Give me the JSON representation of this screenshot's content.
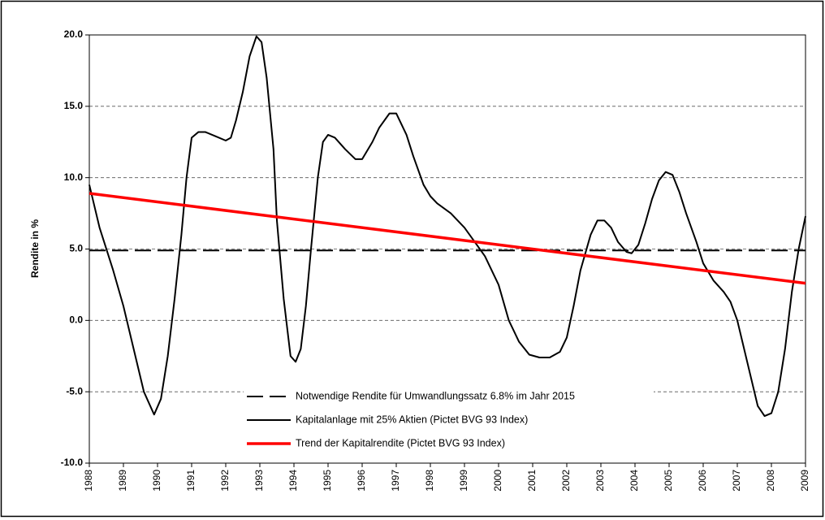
{
  "chart_data": {
    "type": "line",
    "ylabel": "Rendite in %",
    "xlim": [
      1988,
      2009
    ],
    "xticks": [
      1988,
      1989,
      1990,
      1991,
      1992,
      1993,
      1994,
      1995,
      1996,
      1997,
      1998,
      1999,
      2000,
      2001,
      2002,
      2003,
      2004,
      2005,
      2006,
      2007,
      2008,
      2009
    ],
    "ylim": [
      -10,
      20
    ],
    "yticks": [
      {
        "value": -10,
        "label": "-10.0"
      },
      {
        "value": -5,
        "label": "-5.0"
      },
      {
        "value": 0,
        "label": "0.0"
      },
      {
        "value": 5,
        "label": "5.0"
      },
      {
        "value": 10,
        "label": "10.0"
      },
      {
        "value": 15,
        "label": "15.0"
      },
      {
        "value": 20,
        "label": "20.0"
      }
    ],
    "grid": true,
    "legend": "lower center",
    "series": [
      {
        "name": "Notwendige Rendite für Umwandlungssatz 6.8% im Jahr 2015",
        "color": "#000000",
        "dash": true,
        "x": [
          1988,
          2009
        ],
        "values": [
          4.9,
          4.9
        ]
      },
      {
        "name": "Kapitalanlage mit 25% Aktien (Pictet BVG 93 Index)",
        "color": "#000000",
        "dash": false,
        "x": [
          1988.0,
          1988.3,
          1988.7,
          1989.0,
          1989.3,
          1989.6,
          1989.9,
          1990.1,
          1990.3,
          1990.5,
          1990.7,
          1990.85,
          1991.0,
          1991.2,
          1991.4,
          1991.7,
          1992.0,
          1992.15,
          1992.3,
          1992.5,
          1992.7,
          1992.9,
          1993.05,
          1993.2,
          1993.4,
          1993.5,
          1993.7,
          1993.9,
          1994.05,
          1994.2,
          1994.35,
          1994.5,
          1994.7,
          1994.85,
          1995.0,
          1995.2,
          1995.5,
          1995.8,
          1996.0,
          1996.3,
          1996.5,
          1996.8,
          1997.0,
          1997.3,
          1997.5,
          1997.8,
          1998.0,
          1998.2,
          1998.6,
          1999.0,
          1999.3,
          1999.6,
          2000.0,
          2000.3,
          2000.6,
          2000.9,
          2001.2,
          2001.5,
          2001.8,
          2002.0,
          2002.2,
          2002.4,
          2002.7,
          2002.9,
          2003.1,
          2003.3,
          2003.5,
          2003.75,
          2003.9,
          2004.1,
          2004.3,
          2004.5,
          2004.7,
          2004.9,
          2005.1,
          2005.3,
          2005.5,
          2005.8,
          2006.0,
          2006.3,
          2006.6,
          2006.8,
          2007.0,
          2007.2,
          2007.4,
          2007.6,
          2007.8,
          2008.0,
          2008.2,
          2008.4,
          2008.6,
          2008.8,
          2009.0
        ],
        "values": [
          9.5,
          6.5,
          3.5,
          1.0,
          -2.0,
          -5.0,
          -6.6,
          -5.5,
          -2.5,
          1.5,
          6.0,
          10.0,
          12.8,
          13.2,
          13.2,
          12.9,
          12.6,
          12.8,
          14.0,
          16.0,
          18.5,
          19.9,
          19.5,
          17.0,
          12.0,
          7.0,
          1.5,
          -2.5,
          -2.9,
          -2.0,
          1.0,
          5.0,
          10.0,
          12.5,
          13.0,
          12.8,
          12.0,
          11.3,
          11.3,
          12.5,
          13.5,
          14.5,
          14.5,
          13.0,
          11.5,
          9.5,
          8.7,
          8.2,
          7.5,
          6.5,
          5.5,
          4.5,
          2.5,
          0.0,
          -1.5,
          -2.4,
          -2.6,
          -2.6,
          -2.2,
          -1.2,
          1.0,
          3.5,
          6.0,
          7.0,
          7.0,
          6.5,
          5.5,
          4.8,
          4.7,
          5.3,
          6.8,
          8.5,
          9.8,
          10.4,
          10.2,
          9.0,
          7.5,
          5.5,
          4.0,
          2.8,
          2.0,
          1.3,
          0.0,
          -2.0,
          -4.0,
          -6.0,
          -6.7,
          -6.5,
          -5.0,
          -2.0,
          2.0,
          5.0,
          7.3
        ]
      },
      {
        "name": "Trend der Kapitalrendite (Pictet BVG 93 Index)",
        "color": "#ff0000",
        "dash": false,
        "x": [
          1988,
          2009
        ],
        "values": [
          8.9,
          2.6
        ]
      }
    ]
  }
}
